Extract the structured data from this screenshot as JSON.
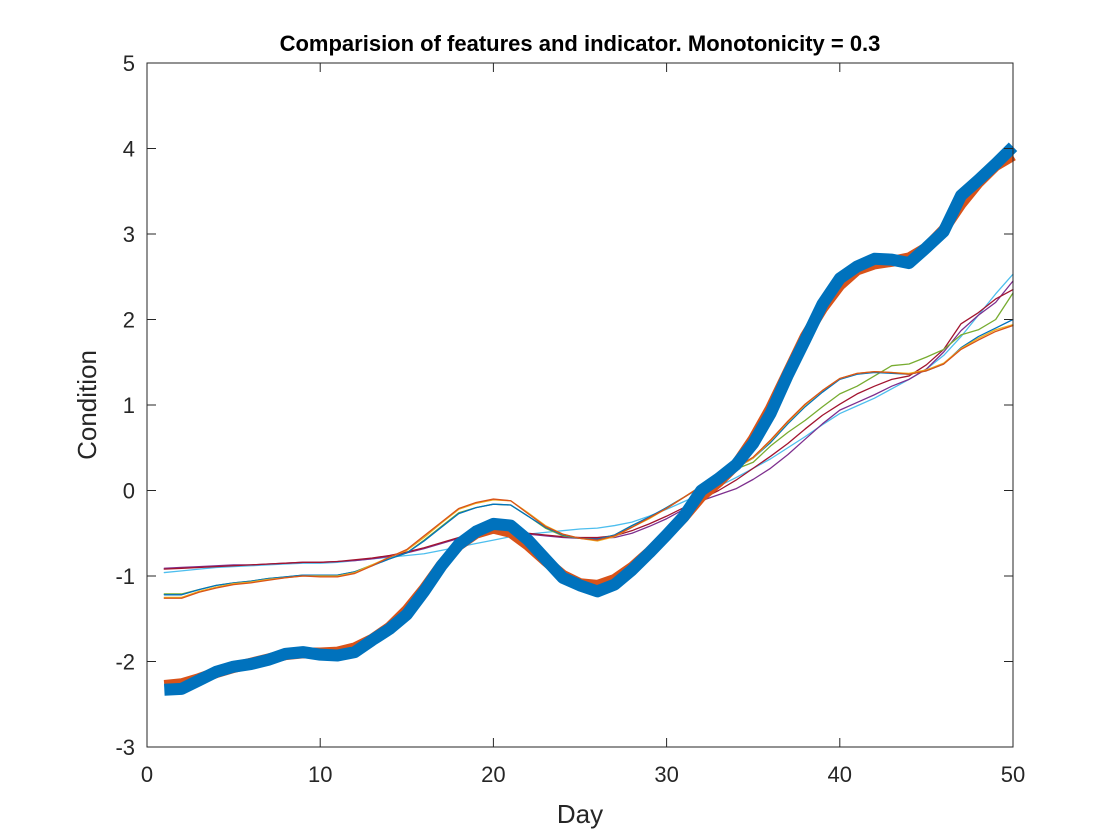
{
  "chart_data": {
    "type": "line",
    "title": "Comparision of features and indicator. Monotonicity = 0.3",
    "xlabel": "Day",
    "ylabel": "Condition",
    "xlim": [
      0,
      50
    ],
    "ylim": [
      -3,
      5
    ],
    "xticks": [
      "0",
      "10",
      "20",
      "30",
      "40",
      "50"
    ],
    "yticks": [
      "-3",
      "-2",
      "-1",
      "0",
      "1",
      "2",
      "3",
      "4",
      "5"
    ],
    "grid": false,
    "legend": "none",
    "x": [
      1,
      2,
      3,
      4,
      5,
      6,
      7,
      8,
      9,
      10,
      11,
      12,
      13,
      14,
      15,
      16,
      17,
      18,
      19,
      20,
      21,
      22,
      23,
      24,
      25,
      26,
      27,
      28,
      29,
      30,
      31,
      32,
      33,
      34,
      35,
      36,
      37,
      38,
      39,
      40,
      41,
      42,
      43,
      44,
      45,
      46,
      47,
      48,
      49,
      50
    ],
    "series": [
      {
        "color": "#0072BD",
        "width": 12,
        "values": [
          -2.33,
          -2.32,
          -2.22,
          -2.12,
          -2.06,
          -2.03,
          -1.98,
          -1.91,
          -1.89,
          -1.92,
          -1.93,
          -1.89,
          -1.75,
          -1.62,
          -1.45,
          -1.18,
          -0.88,
          -0.63,
          -0.48,
          -0.39,
          -0.41,
          -0.58,
          -0.8,
          -1.02,
          -1.11,
          -1.18,
          -1.1,
          -0.93,
          -0.73,
          -0.52,
          -0.3,
          0.0,
          0.14,
          0.3,
          0.55,
          0.9,
          1.35,
          1.76,
          2.18,
          2.48,
          2.62,
          2.71,
          2.7,
          2.66,
          2.84,
          3.03,
          3.45,
          3.63,
          3.82,
          4.02
        ]
      },
      {
        "color": "#D95319",
        "width": 11,
        "values": [
          -2.28,
          -2.26,
          -2.2,
          -2.13,
          -2.07,
          -2.02,
          -1.97,
          -1.92,
          -1.9,
          -1.9,
          -1.89,
          -1.84,
          -1.74,
          -1.6,
          -1.4,
          -1.15,
          -0.87,
          -0.64,
          -0.5,
          -0.44,
          -0.49,
          -0.64,
          -0.82,
          -0.99,
          -1.09,
          -1.11,
          -1.04,
          -0.9,
          -0.72,
          -0.52,
          -0.31,
          -0.07,
          0.1,
          0.3,
          0.6,
          0.96,
          1.38,
          1.8,
          2.13,
          2.4,
          2.58,
          2.65,
          2.68,
          2.72,
          2.84,
          3.05,
          3.35,
          3.6,
          3.8,
          3.92
        ]
      },
      {
        "color": "#4DBEEE",
        "width": 1.3,
        "values": [
          -0.96,
          -0.94,
          -0.92,
          -0.9,
          -0.89,
          -0.88,
          -0.87,
          -0.86,
          -0.85,
          -0.85,
          -0.84,
          -0.82,
          -0.8,
          -0.78,
          -0.76,
          -0.74,
          -0.7,
          -0.66,
          -0.62,
          -0.58,
          -0.54,
          -0.51,
          -0.49,
          -0.47,
          -0.45,
          -0.44,
          -0.41,
          -0.37,
          -0.3,
          -0.22,
          -0.13,
          -0.04,
          0.05,
          0.15,
          0.26,
          0.37,
          0.5,
          0.63,
          0.77,
          0.9,
          0.99,
          1.08,
          1.19,
          1.3,
          1.42,
          1.58,
          1.8,
          2.05,
          2.3,
          2.53
        ]
      },
      {
        "color": "#7E2F8E",
        "width": 1.3,
        "values": [
          -0.91,
          -0.9,
          -0.89,
          -0.88,
          -0.87,
          -0.87,
          -0.86,
          -0.85,
          -0.84,
          -0.84,
          -0.83,
          -0.82,
          -0.8,
          -0.77,
          -0.73,
          -0.68,
          -0.62,
          -0.56,
          -0.52,
          -0.5,
          -0.49,
          -0.51,
          -0.53,
          -0.55,
          -0.56,
          -0.56,
          -0.55,
          -0.5,
          -0.42,
          -0.33,
          -0.22,
          -0.12,
          -0.05,
          0.02,
          0.13,
          0.26,
          0.42,
          0.6,
          0.78,
          0.94,
          1.03,
          1.12,
          1.22,
          1.3,
          1.42,
          1.62,
          1.87,
          2.05,
          2.2,
          2.45
        ]
      },
      {
        "color": "#A2142F",
        "width": 1.3,
        "values": [
          -0.92,
          -0.91,
          -0.9,
          -0.89,
          -0.88,
          -0.87,
          -0.86,
          -0.85,
          -0.84,
          -0.84,
          -0.83,
          -0.81,
          -0.79,
          -0.76,
          -0.72,
          -0.67,
          -0.61,
          -0.55,
          -0.51,
          -0.49,
          -0.48,
          -0.5,
          -0.52,
          -0.54,
          -0.55,
          -0.55,
          -0.53,
          -0.47,
          -0.39,
          -0.3,
          -0.2,
          -0.1,
          0.0,
          0.12,
          0.26,
          0.4,
          0.55,
          0.72,
          0.88,
          1.01,
          1.13,
          1.22,
          1.3,
          1.34,
          1.47,
          1.65,
          1.95,
          2.08,
          2.24,
          2.35
        ]
      },
      {
        "color": "#77AC30",
        "width": 1.3,
        "values": [
          -1.21,
          -1.21,
          -1.16,
          -1.11,
          -1.08,
          -1.06,
          -1.03,
          -1.01,
          -0.99,
          -0.99,
          -0.99,
          -0.95,
          -0.87,
          -0.8,
          -0.73,
          -0.58,
          -0.42,
          -0.26,
          -0.2,
          -0.16,
          -0.17,
          -0.3,
          -0.44,
          -0.53,
          -0.56,
          -0.57,
          -0.52,
          -0.41,
          -0.32,
          -0.2,
          -0.08,
          0.05,
          0.15,
          0.25,
          0.33,
          0.52,
          0.68,
          0.82,
          0.98,
          1.13,
          1.22,
          1.34,
          1.46,
          1.48,
          1.56,
          1.65,
          1.82,
          1.88,
          2.0,
          2.31
        ]
      },
      {
        "color": "#0072BD",
        "width": 1.3,
        "values": [
          -1.22,
          -1.22,
          -1.16,
          -1.11,
          -1.08,
          -1.06,
          -1.03,
          -1.01,
          -0.99,
          -0.99,
          -0.99,
          -0.95,
          -0.88,
          -0.8,
          -0.73,
          -0.59,
          -0.43,
          -0.27,
          -0.2,
          -0.16,
          -0.17,
          -0.3,
          -0.43,
          -0.52,
          -0.56,
          -0.57,
          -0.52,
          -0.41,
          -0.31,
          -0.2,
          -0.08,
          0.04,
          0.16,
          0.26,
          0.38,
          0.56,
          0.78,
          0.98,
          1.15,
          1.3,
          1.36,
          1.38,
          1.37,
          1.36,
          1.4,
          1.48,
          1.67,
          1.8,
          1.9,
          2.0
        ]
      },
      {
        "color": "#EDB120",
        "width": 1.3,
        "values": [
          -1.25,
          -1.25,
          -1.18,
          -1.13,
          -1.09,
          -1.07,
          -1.04,
          -1.02,
          -1.0,
          -1.0,
          -1.0,
          -0.96,
          -0.87,
          -0.78,
          -0.7,
          -0.55,
          -0.38,
          -0.22,
          -0.15,
          -0.11,
          -0.12,
          -0.26,
          -0.41,
          -0.51,
          -0.56,
          -0.59,
          -0.54,
          -0.43,
          -0.33,
          -0.21,
          -0.08,
          0.05,
          0.16,
          0.26,
          0.38,
          0.58,
          0.8,
          1.0,
          1.17,
          1.31,
          1.37,
          1.39,
          1.38,
          1.37,
          1.41,
          1.49,
          1.66,
          1.78,
          1.88,
          1.94
        ]
      },
      {
        "color": "#D95319",
        "width": 1.3,
        "values": [
          -1.26,
          -1.26,
          -1.19,
          -1.14,
          -1.1,
          -1.08,
          -1.05,
          -1.02,
          -1.0,
          -1.01,
          -1.01,
          -0.97,
          -0.88,
          -0.78,
          -0.69,
          -0.53,
          -0.37,
          -0.21,
          -0.14,
          -0.1,
          -0.12,
          -0.27,
          -0.42,
          -0.51,
          -0.56,
          -0.58,
          -0.53,
          -0.43,
          -0.32,
          -0.21,
          -0.08,
          0.05,
          0.16,
          0.27,
          0.39,
          0.59,
          0.81,
          1.01,
          1.17,
          1.31,
          1.37,
          1.39,
          1.38,
          1.36,
          1.4,
          1.48,
          1.65,
          1.76,
          1.86,
          1.93
        ]
      }
    ]
  }
}
